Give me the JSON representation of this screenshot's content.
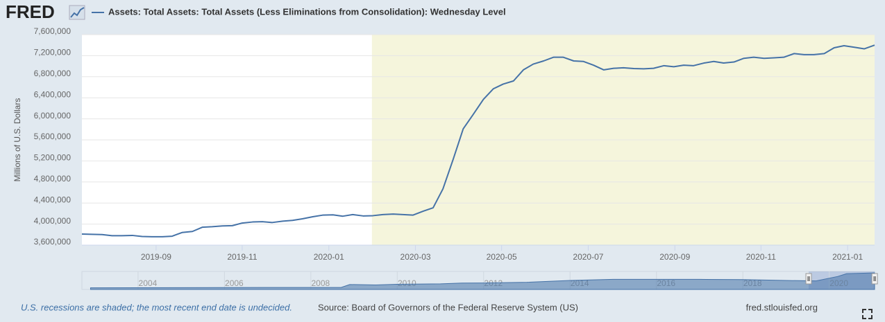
{
  "logo": "FRED",
  "chart_data": {
    "type": "line",
    "title": "Assets: Total Assets: Total Assets (Less Eliminations from Consolidation): Wednesday Level",
    "y_label": "Millions of U.S. Dollars",
    "x": [
      2019.524,
      2019.543,
      2019.563,
      2019.582,
      2019.601,
      2019.621,
      2019.64,
      2019.659,
      2019.679,
      2019.698,
      2019.717,
      2019.737,
      2019.756,
      2019.775,
      2019.795,
      2019.814,
      2019.833,
      2019.853,
      2019.872,
      2019.891,
      2019.911,
      2019.93,
      2019.949,
      2019.969,
      2019.988,
      2020.008,
      2020.027,
      2020.046,
      2020.066,
      2020.085,
      2020.104,
      2020.124,
      2020.143,
      2020.162,
      2020.182,
      2020.201,
      2020.22,
      2020.24,
      2020.259,
      2020.278,
      2020.298,
      2020.317,
      2020.336,
      2020.356,
      2020.375,
      2020.394,
      2020.414,
      2020.433,
      2020.452,
      2020.472,
      2020.491,
      2020.51,
      2020.53,
      2020.549,
      2020.568,
      2020.588,
      2020.607,
      2020.626,
      2020.646,
      2020.665,
      2020.684,
      2020.703,
      2020.723,
      2020.742,
      2020.761,
      2020.781,
      2020.8,
      2020.819,
      2020.839,
      2020.858,
      2020.877,
      2020.897,
      2020.916,
      2020.935,
      2020.955,
      2020.974,
      2020.993,
      2021.013,
      2021.032,
      2021.052
    ],
    "series": [
      {
        "name": "Assets: Total Assets: Total Assets (Less Eliminations from Consolidation): Wednesday Level",
        "color": "#4572a7",
        "values": [
          3810000,
          3805000,
          3800000,
          3780000,
          3780000,
          3785000,
          3765000,
          3760000,
          3760000,
          3770000,
          3840000,
          3860000,
          3940000,
          3950000,
          3965000,
          3970000,
          4020000,
          4040000,
          4045000,
          4030000,
          4055000,
          4070000,
          4100000,
          4140000,
          4170000,
          4175000,
          4150000,
          4180000,
          4155000,
          4160000,
          4180000,
          4190000,
          4180000,
          4170000,
          4245000,
          4310000,
          4670000,
          5240000,
          5810000,
          6080000,
          6370000,
          6570000,
          6660000,
          6720000,
          6930000,
          7040000,
          7100000,
          7170000,
          7170000,
          7100000,
          7090000,
          7020000,
          6930000,
          6960000,
          6970000,
          6955000,
          6950000,
          6960000,
          7010000,
          6990000,
          7020000,
          7010000,
          7060000,
          7090000,
          7060000,
          7080000,
          7150000,
          7170000,
          7150000,
          7160000,
          7170000,
          7240000,
          7220000,
          7220000,
          7240000,
          7350000,
          7390000,
          7360000,
          7330000,
          7400000
        ]
      }
    ],
    "xlim": [
      2019.524,
      2021.052
    ],
    "xticks": [
      {
        "value": 2019.667,
        "label": "2019-09"
      },
      {
        "value": 2019.833,
        "label": "2019-11"
      },
      {
        "value": 2020.0,
        "label": "2020-01"
      },
      {
        "value": 2020.167,
        "label": "2020-03"
      },
      {
        "value": 2020.333,
        "label": "2020-05"
      },
      {
        "value": 2020.5,
        "label": "2020-07"
      },
      {
        "value": 2020.667,
        "label": "2020-09"
      },
      {
        "value": 2020.833,
        "label": "2020-11"
      },
      {
        "value": 2021.0,
        "label": "2021-01"
      }
    ],
    "ylim": [
      3600000,
      7600000
    ],
    "yticks": [
      {
        "value": 3600000,
        "label": "3,600,000"
      },
      {
        "value": 4000000,
        "label": "4,000,000"
      },
      {
        "value": 4400000,
        "label": "4,400,000"
      },
      {
        "value": 4800000,
        "label": "4,800,000"
      },
      {
        "value": 5200000,
        "label": "5,200,000"
      },
      {
        "value": 5600000,
        "label": "5,600,000"
      },
      {
        "value": 6000000,
        "label": "6,000,000"
      },
      {
        "value": 6400000,
        "label": "6,400,000"
      },
      {
        "value": 6800000,
        "label": "6,800,000"
      },
      {
        "value": 7200000,
        "label": "7,200,000"
      },
      {
        "value": 7600000,
        "label": "7,600,000"
      }
    ],
    "grid": true,
    "recessions": [
      {
        "start": 2020.083,
        "end": null,
        "color": "#f5f5dc"
      }
    ],
    "navigator": {
      "x": [
        2002.9,
        2004,
        2005,
        2006,
        2007,
        2008.7,
        2008.9,
        2009.5,
        2010,
        2011,
        2011.5,
        2012,
        2013,
        2014,
        2015,
        2016,
        2017,
        2018,
        2019,
        2019.7,
        2020.2,
        2020.4,
        2021.05
      ],
      "values": [
        720000,
        760000,
        820000,
        860000,
        880000,
        900000,
        2200000,
        2000000,
        2300000,
        2500000,
        2850000,
        2900000,
        3200000,
        4000000,
        4500000,
        4500000,
        4500000,
        4400000,
        4000000,
        3800000,
        5800000,
        7000000,
        7400000
      ],
      "xlim": [
        2002.7,
        2021.05
      ],
      "ylim": [
        0,
        7400000
      ],
      "xticks": [
        {
          "value": 2004,
          "label": "2004"
        },
        {
          "value": 2006,
          "label": "2006"
        },
        {
          "value": 2008,
          "label": "2008"
        },
        {
          "value": 2010,
          "label": "2010"
        },
        {
          "value": 2012,
          "label": "2012"
        },
        {
          "value": 2014,
          "label": "2014"
        },
        {
          "value": 2016,
          "label": "2016"
        },
        {
          "value": 2018,
          "label": "2018"
        },
        {
          "value": 2020,
          "label": "2020"
        }
      ]
    }
  },
  "footer": {
    "recession_note": "U.S. recessions are shaded; the most recent end date is undecided.",
    "source": "Source: Board of Governors of the Federal Reserve System (US)",
    "site": "fred.stlouisfed.org"
  }
}
